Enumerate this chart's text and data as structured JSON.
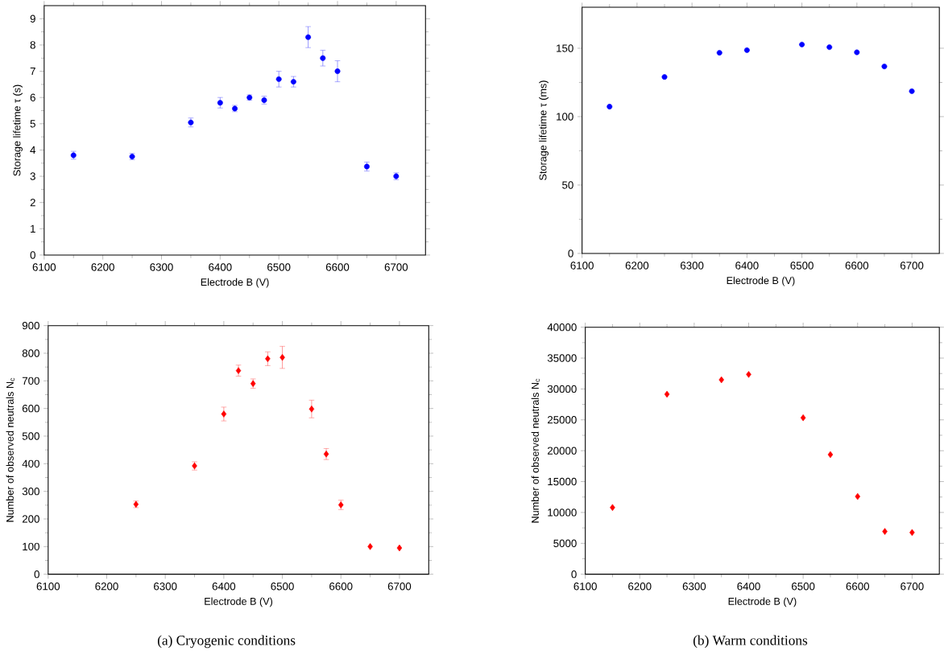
{
  "chart_data": [
    {
      "type": "scatter",
      "xlabel": "Electrode B (V)",
      "ylabel": "Storage lifetime τ (s)",
      "marker": "circle",
      "xlim": [
        6100,
        6750
      ],
      "ylim": [
        0,
        9.5
      ],
      "xticks": [
        6100,
        6200,
        6300,
        6400,
        6500,
        6600,
        6700
      ],
      "yticks": [
        0,
        1,
        2,
        3,
        4,
        5,
        6,
        7,
        8,
        9
      ],
      "x": [
        6150,
        6250,
        6350,
        6400,
        6425,
        6450,
        6475,
        6500,
        6525,
        6550,
        6575,
        6600,
        6650,
        6700
      ],
      "series": [
        {
          "color": "#0000ff",
          "values": [
            3.8,
            3.75,
            5.05,
            5.8,
            5.58,
            6.0,
            5.9,
            6.7,
            6.6,
            8.3,
            7.5,
            7.0,
            3.37,
            3.0
          ],
          "errors": [
            0.15,
            0.12,
            0.17,
            0.2,
            0.12,
            0.1,
            0.15,
            0.3,
            0.2,
            0.4,
            0.3,
            0.4,
            0.17,
            0.13
          ]
        }
      ]
    },
    {
      "type": "scatter",
      "xlabel": "Electrode B (V)",
      "ylabel": "Storage lifetime τ (ms)",
      "marker": "circle",
      "xlim": [
        6100,
        6750
      ],
      "ylim": [
        0,
        180
      ],
      "xticks": [
        6100,
        6200,
        6300,
        6400,
        6500,
        6600,
        6700
      ],
      "yticks": [
        0,
        50,
        100,
        150
      ],
      "x": [
        6150,
        6250,
        6350,
        6400,
        6500,
        6550,
        6600,
        6650,
        6700
      ],
      "series": [
        {
          "color": "#0000ff",
          "values": [
            107.3,
            129,
            146.7,
            148.6,
            152.7,
            150.8,
            147,
            136.7,
            118.6
          ]
        }
      ]
    },
    {
      "type": "scatter",
      "xlabel": "Electrode B (V)",
      "ylabel": "Number of observed neutrals N$_{c}$",
      "marker": "diamond",
      "xlim": [
        6100,
        6750
      ],
      "ylim": [
        0,
        900
      ],
      "xticks": [
        6100,
        6200,
        6300,
        6400,
        6500,
        6600,
        6700
      ],
      "yticks": [
        0,
        100,
        200,
        300,
        400,
        500,
        600,
        700,
        800,
        900
      ],
      "x": [
        6250,
        6350,
        6400,
        6425,
        6450,
        6475,
        6500,
        6550,
        6575,
        6600,
        6650,
        6700
      ],
      "series": [
        {
          "color": "#ff0000",
          "values": [
            253,
            392,
            580,
            737,
            690,
            780,
            785,
            598,
            435,
            251,
            100,
            95
          ],
          "errors": [
            12,
            15,
            25,
            20,
            17,
            25,
            40,
            32,
            20,
            17,
            null,
            null
          ]
        }
      ],
      "annotations": [
        "(a) Cryogenic conditions"
      ]
    },
    {
      "type": "scatter",
      "xlabel": "Electrode B (V)",
      "ylabel": "Number of observed neutrals N$_{c}$",
      "marker": "diamond",
      "xlim": [
        6100,
        6750
      ],
      "ylim": [
        0,
        40000
      ],
      "xticks": [
        6100,
        6200,
        6300,
        6400,
        6500,
        6600,
        6700
      ],
      "yticks": [
        0,
        5000,
        10000,
        15000,
        20000,
        25000,
        30000,
        35000,
        40000
      ],
      "x": [
        6150,
        6250,
        6350,
        6400,
        6500,
        6550,
        6600,
        6650,
        6700
      ],
      "series": [
        {
          "color": "#ff0000",
          "values": [
            10800,
            29150,
            31480,
            32350,
            25340,
            19370,
            12580,
            6920,
            6750
          ]
        }
      ],
      "annotations": [
        "(b) Warm conditions"
      ]
    }
  ]
}
